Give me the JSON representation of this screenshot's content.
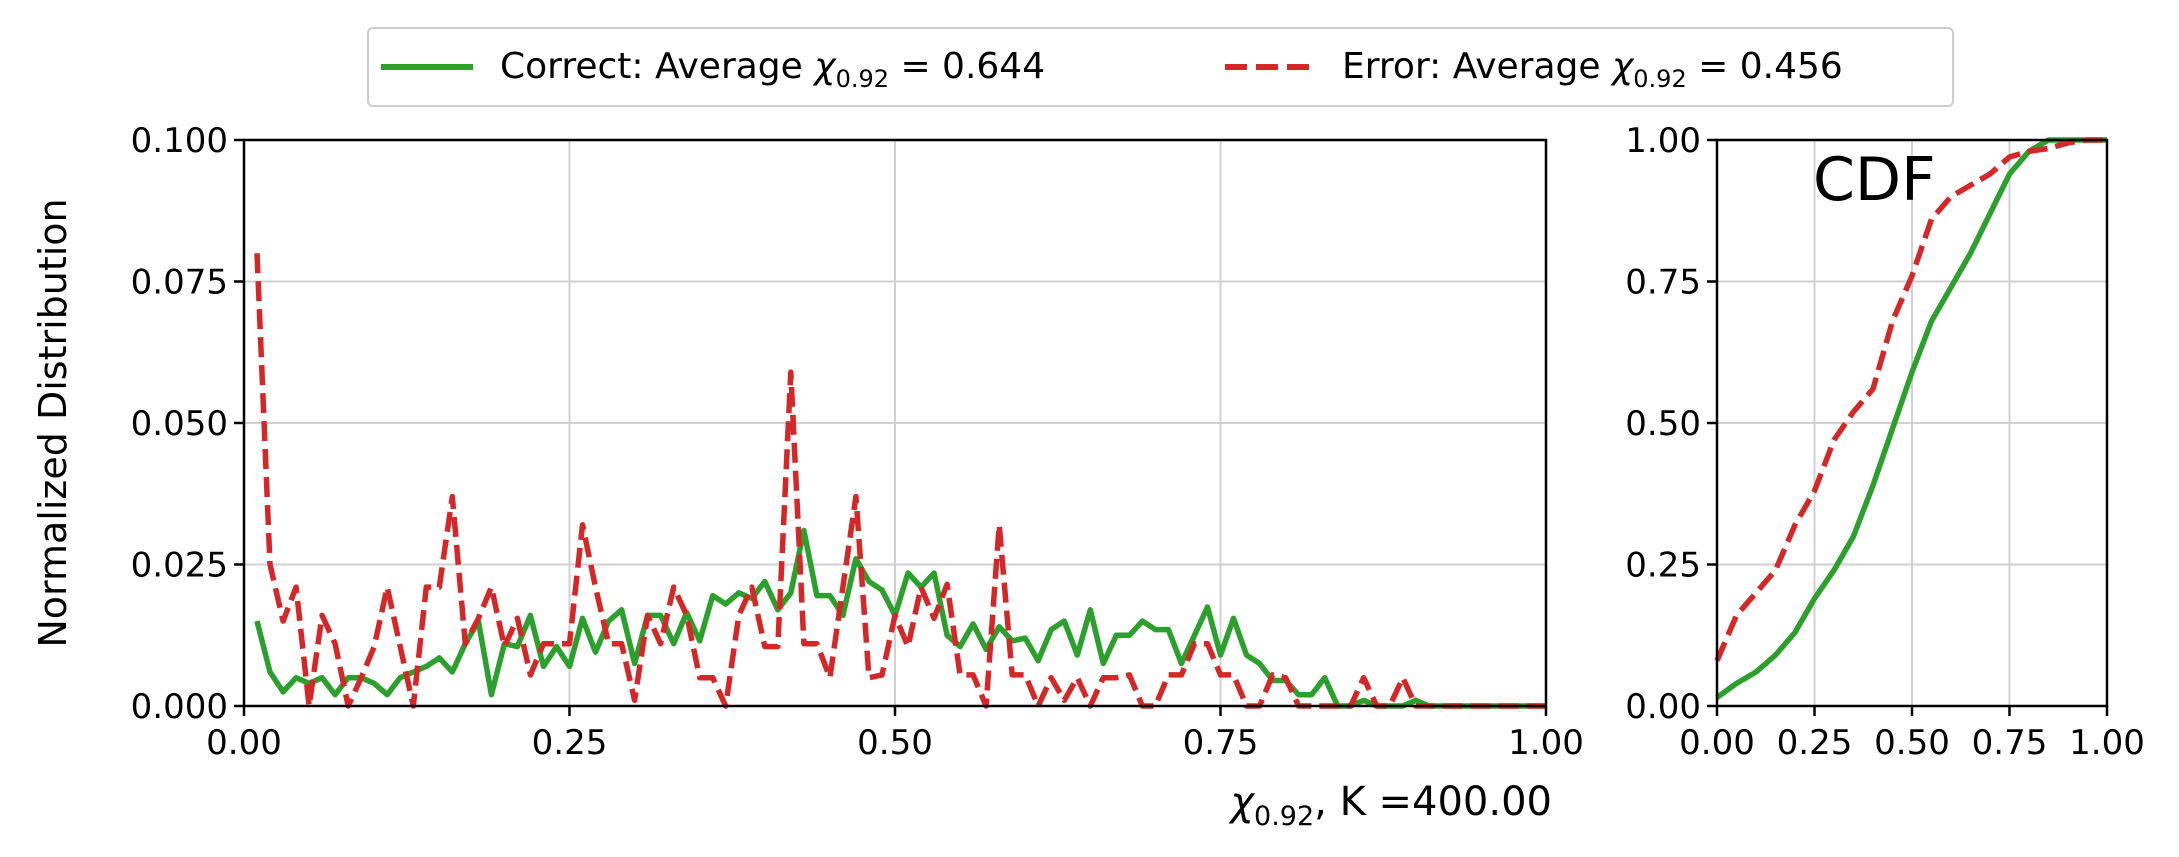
{
  "legend": {
    "placement": "top-center",
    "entries": [
      {
        "prefix": "Correct: Average ",
        "symbol": "χ",
        "subscript": "0.92",
        "suffix": " = 0.644",
        "color": "#2ca02c",
        "style": "solid"
      },
      {
        "prefix": "Error: Average ",
        "symbol": "χ",
        "subscript": "0.92",
        "suffix": " = 0.456",
        "color": "#d62728",
        "style": "dashed"
      }
    ]
  },
  "chart_data": [
    {
      "type": "line",
      "ylabel": "Normalized Distribution",
      "xlabel": {
        "symbol": "χ",
        "subscript": "0.92",
        "suffix": ", K =400.00"
      },
      "xlim": [
        0,
        1
      ],
      "ylim": [
        0,
        0.1
      ],
      "grid": true,
      "xticks": [
        0,
        0.25,
        0.5,
        0.75,
        1.0
      ],
      "xtick_labels": [
        "0.00",
        "0.25",
        "0.50",
        "0.75",
        "1.00"
      ],
      "yticks": [
        0,
        0.025,
        0.05,
        0.075,
        0.1
      ],
      "ytick_labels": [
        "0.000",
        "0.025",
        "0.050",
        "0.075",
        "0.100"
      ],
      "series": [
        {
          "name": "Correct",
          "color": "#2ca02c",
          "style": "solid",
          "x": [
            0.01,
            0.02,
            0.03,
            0.04,
            0.05,
            0.06,
            0.07,
            0.08,
            0.09,
            0.1,
            0.11,
            0.12,
            0.13,
            0.14,
            0.15,
            0.16,
            0.17,
            0.18,
            0.19,
            0.2,
            0.21,
            0.22,
            0.23,
            0.24,
            0.25,
            0.26,
            0.27,
            0.28,
            0.29,
            0.3,
            0.31,
            0.32,
            0.33,
            0.34,
            0.35,
            0.36,
            0.37,
            0.38,
            0.39,
            0.4,
            0.41,
            0.42,
            0.43,
            0.44,
            0.45,
            0.46,
            0.47,
            0.48,
            0.49,
            0.5,
            0.51,
            0.52,
            0.53,
            0.54,
            0.55,
            0.56,
            0.57,
            0.58,
            0.59,
            0.6,
            0.61,
            0.62,
            0.63,
            0.64,
            0.65,
            0.66,
            0.67,
            0.68,
            0.69,
            0.7,
            0.71,
            0.72,
            0.73,
            0.74,
            0.75,
            0.76,
            0.77,
            0.78,
            0.79,
            0.8,
            0.81,
            0.82,
            0.83,
            0.84,
            0.85,
            0.86,
            0.87,
            0.88,
            0.89,
            0.9,
            0.91,
            0.92,
            0.93,
            0.94,
            0.95,
            0.96,
            0.97,
            0.98,
            0.99,
            1.0
          ],
          "y": [
            0.015,
            0.006,
            0.0025,
            0.005,
            0.004,
            0.005,
            0.002,
            0.005,
            0.005,
            0.004,
            0.002,
            0.005,
            0.006,
            0.007,
            0.0085,
            0.006,
            0.011,
            0.015,
            0.002,
            0.011,
            0.0105,
            0.016,
            0.007,
            0.0105,
            0.007,
            0.0155,
            0.0095,
            0.015,
            0.017,
            0.0075,
            0.016,
            0.016,
            0.011,
            0.0165,
            0.0115,
            0.0195,
            0.018,
            0.02,
            0.019,
            0.022,
            0.017,
            0.02,
            0.031,
            0.0195,
            0.0195,
            0.016,
            0.026,
            0.022,
            0.0205,
            0.016,
            0.0235,
            0.021,
            0.0235,
            0.0125,
            0.0105,
            0.0145,
            0.01,
            0.014,
            0.0115,
            0.012,
            0.008,
            0.0135,
            0.015,
            0.009,
            0.017,
            0.0075,
            0.0125,
            0.0125,
            0.015,
            0.0135,
            0.0135,
            0.0075,
            0.0125,
            0.0175,
            0.009,
            0.0155,
            0.009,
            0.0075,
            0.0045,
            0.0045,
            0.002,
            0.002,
            0.005,
            0.0,
            0.0,
            0.001,
            0.0,
            0.0,
            0.0,
            0.001,
            0.0,
            0.0,
            0.0,
            0.0,
            0.0,
            0.0,
            0.0,
            0.0,
            0.0,
            0.0
          ]
        },
        {
          "name": "Error",
          "color": "#d62728",
          "style": "dashed",
          "x": [
            0.01,
            0.02,
            0.03,
            0.04,
            0.05,
            0.06,
            0.07,
            0.08,
            0.09,
            0.1,
            0.11,
            0.12,
            0.13,
            0.14,
            0.15,
            0.16,
            0.17,
            0.18,
            0.19,
            0.2,
            0.21,
            0.22,
            0.23,
            0.24,
            0.25,
            0.26,
            0.27,
            0.28,
            0.29,
            0.3,
            0.31,
            0.32,
            0.33,
            0.34,
            0.35,
            0.36,
            0.37,
            0.38,
            0.39,
            0.4,
            0.41,
            0.42,
            0.43,
            0.44,
            0.45,
            0.46,
            0.47,
            0.48,
            0.49,
            0.5,
            0.51,
            0.52,
            0.53,
            0.54,
            0.55,
            0.56,
            0.57,
            0.58,
            0.59,
            0.6,
            0.61,
            0.62,
            0.63,
            0.64,
            0.65,
            0.66,
            0.67,
            0.68,
            0.69,
            0.7,
            0.71,
            0.72,
            0.73,
            0.74,
            0.75,
            0.76,
            0.77,
            0.78,
            0.79,
            0.8,
            0.81,
            0.82,
            0.83,
            0.84,
            0.85,
            0.86,
            0.87,
            0.88,
            0.89,
            0.9,
            0.91,
            0.92,
            0.93,
            0.94,
            0.95,
            0.96,
            0.97,
            0.98,
            0.99,
            1.0
          ],
          "y": [
            0.08,
            0.025,
            0.015,
            0.021,
            0.0,
            0.016,
            0.011,
            0.0,
            0.005,
            0.0105,
            0.021,
            0.0105,
            0.0,
            0.021,
            0.021,
            0.037,
            0.011,
            0.0155,
            0.021,
            0.0105,
            0.0155,
            0.0055,
            0.011,
            0.011,
            0.011,
            0.032,
            0.021,
            0.011,
            0.011,
            0.001,
            0.016,
            0.011,
            0.021,
            0.016,
            0.005,
            0.005,
            0.0,
            0.016,
            0.021,
            0.0105,
            0.0105,
            0.059,
            0.011,
            0.011,
            0.005,
            0.021,
            0.037,
            0.005,
            0.0055,
            0.016,
            0.0105,
            0.021,
            0.0155,
            0.0215,
            0.0055,
            0.0055,
            0.0,
            0.032,
            0.0055,
            0.0055,
            0.0,
            0.005,
            0.001,
            0.005,
            0.0,
            0.005,
            0.005,
            0.0055,
            0.0,
            0.0,
            0.0055,
            0.0055,
            0.011,
            0.011,
            0.0055,
            0.0055,
            0.0,
            0.0,
            0.0055,
            0.005,
            0.0,
            0.0,
            0.0,
            0.0,
            0.0,
            0.005,
            0.0,
            0.0,
            0.005,
            0.0,
            0.0,
            0.0,
            0.0,
            0.0,
            0.0,
            0.0,
            0.0,
            0.0,
            0.0,
            0.0
          ]
        }
      ]
    },
    {
      "type": "line",
      "annotation": "CDF",
      "xlim": [
        0,
        1
      ],
      "ylim": [
        0,
        1
      ],
      "grid": true,
      "xticks": [
        0,
        0.25,
        0.5,
        0.75,
        1.0
      ],
      "xtick_labels": [
        "0.00",
        "0.25",
        "0.50",
        "0.75",
        "1.00"
      ],
      "yticks": [
        0,
        0.25,
        0.5,
        0.75,
        1.0
      ],
      "ytick_labels": [
        "0.00",
        "0.25",
        "0.50",
        "0.75",
        "1.00"
      ],
      "series": [
        {
          "name": "Correct",
          "color": "#2ca02c",
          "style": "solid",
          "x": [
            0.0,
            0.05,
            0.1,
            0.15,
            0.2,
            0.25,
            0.3,
            0.35,
            0.4,
            0.45,
            0.5,
            0.55,
            0.6,
            0.65,
            0.7,
            0.75,
            0.8,
            0.85,
            0.9,
            0.95,
            1.0
          ],
          "y": [
            0.015,
            0.04,
            0.06,
            0.09,
            0.13,
            0.19,
            0.24,
            0.3,
            0.39,
            0.49,
            0.59,
            0.68,
            0.74,
            0.8,
            0.87,
            0.94,
            0.98,
            1.0,
            1.0,
            1.0,
            1.0
          ]
        },
        {
          "name": "Error",
          "color": "#d62728",
          "style": "dashed",
          "x": [
            0.0,
            0.05,
            0.1,
            0.15,
            0.2,
            0.25,
            0.3,
            0.35,
            0.4,
            0.45,
            0.5,
            0.55,
            0.6,
            0.65,
            0.7,
            0.75,
            0.8,
            0.85,
            0.9,
            0.95,
            1.0
          ],
          "y": [
            0.08,
            0.16,
            0.2,
            0.24,
            0.32,
            0.38,
            0.47,
            0.52,
            0.56,
            0.68,
            0.76,
            0.86,
            0.9,
            0.92,
            0.94,
            0.97,
            0.98,
            0.985,
            0.995,
            1.0,
            1.0
          ]
        }
      ]
    }
  ]
}
